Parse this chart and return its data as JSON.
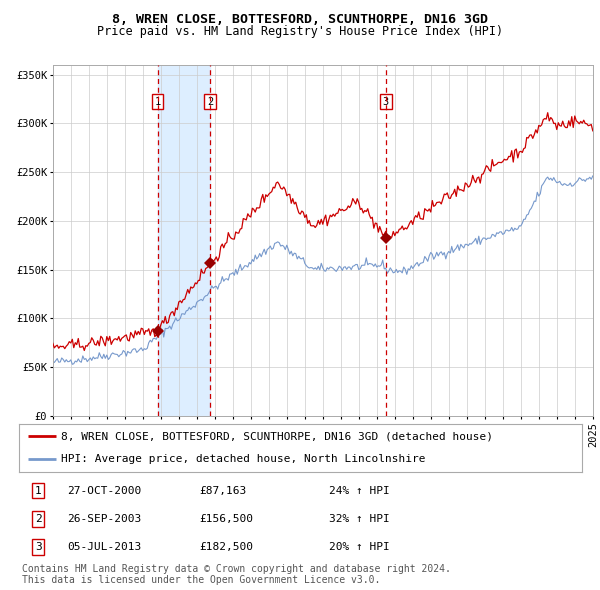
{
  "title": "8, WREN CLOSE, BOTTESFORD, SCUNTHORPE, DN16 3GD",
  "subtitle": "Price paid vs. HM Land Registry's House Price Index (HPI)",
  "ylabel_ticks": [
    "£0",
    "£50K",
    "£100K",
    "£150K",
    "£200K",
    "£250K",
    "£300K",
    "£350K"
  ],
  "ytick_values": [
    0,
    50000,
    100000,
    150000,
    200000,
    250000,
    300000,
    350000
  ],
  "ylim": [
    0,
    360000
  ],
  "sale_dates": [
    "2000-10-27",
    "2003-09-26",
    "2013-07-05"
  ],
  "sale_prices": [
    87163,
    156500,
    182500
  ],
  "sale_labels": [
    "1",
    "2",
    "3"
  ],
  "legend_line1": "8, WREN CLOSE, BOTTESFORD, SCUNTHORPE, DN16 3GD (detached house)",
  "legend_line2": "HPI: Average price, detached house, North Lincolnshire",
  "table_rows": [
    [
      "1",
      "27-OCT-2000",
      "£87,163",
      "24% ↑ HPI"
    ],
    [
      "2",
      "26-SEP-2003",
      "£156,500",
      "32% ↑ HPI"
    ],
    [
      "3",
      "05-JUL-2013",
      "£182,500",
      "20% ↑ HPI"
    ]
  ],
  "footnote1": "Contains HM Land Registry data © Crown copyright and database right 2024.",
  "footnote2": "This data is licensed under the Open Government Licence v3.0.",
  "red_line_color": "#cc0000",
  "blue_line_color": "#7799cc",
  "sale_marker_color": "#990000",
  "dashed_line_color": "#cc0000",
  "shade_color": "#ddeeff",
  "background_color": "#ffffff",
  "grid_color": "#cccccc",
  "title_fontsize": 9.5,
  "subtitle_fontsize": 8.5,
  "tick_fontsize": 7.5,
  "legend_fontsize": 8,
  "table_fontsize": 8,
  "footnote_fontsize": 7
}
